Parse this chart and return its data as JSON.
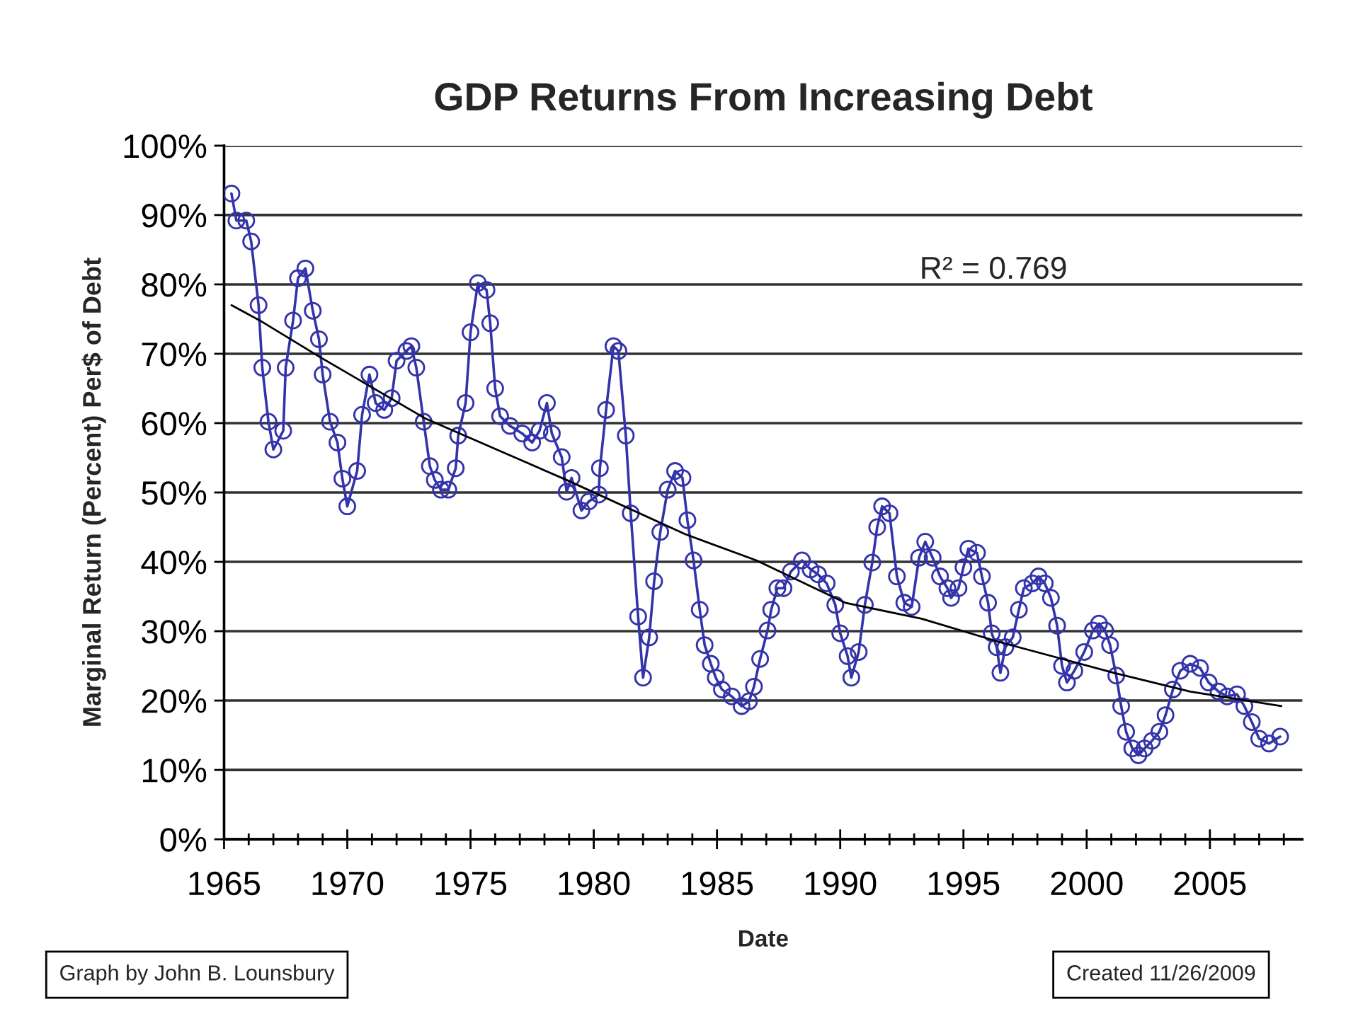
{
  "chart_data": {
    "type": "line",
    "title": "GDP Returns From Increasing Debt",
    "xlabel": "Date",
    "ylabel": "Marginal Return (Percent) Per$ of Debt",
    "annotations": [
      "R² = 0.769",
      "Graph by John B. Lounsbury",
      "Created 11/26/2009"
    ],
    "xlim": [
      1965,
      2008.75
    ],
    "ylim": [
      0,
      100
    ],
    "xticks": [
      1965,
      {
        "value": 1966,
        "label": null
      },
      {
        "value": 1967,
        "label": null
      },
      {
        "value": 1968,
        "label": null
      },
      {
        "value": 1969,
        "label": null
      },
      1970,
      {
        "value": 1971,
        "label": null
      },
      {
        "value": 1972,
        "label": null
      },
      {
        "value": 1973,
        "label": null
      },
      {
        "value": 1974,
        "label": null
      },
      1975,
      {
        "value": 1976,
        "label": null
      },
      {
        "value": 1977,
        "label": null
      },
      {
        "value": 1978,
        "label": null
      },
      {
        "value": 1979,
        "label": null
      },
      1980,
      {
        "value": 1981,
        "label": null
      },
      {
        "value": 1982,
        "label": null
      },
      {
        "value": 1983,
        "label": null
      },
      {
        "value": 1984,
        "label": null
      },
      1985,
      {
        "value": 1986,
        "label": null
      },
      {
        "value": 1987,
        "label": null
      },
      {
        "value": 1988,
        "label": null
      },
      {
        "value": 1989,
        "label": null
      },
      1990,
      {
        "value": 1991,
        "label": null
      },
      {
        "value": 1992,
        "label": null
      },
      {
        "value": 1993,
        "label": null
      },
      {
        "value": 1994,
        "label": null
      },
      1995,
      {
        "value": 1996,
        "label": null
      },
      {
        "value": 1997,
        "label": null
      },
      {
        "value": 1998,
        "label": null
      },
      {
        "value": 1999,
        "label": null
      },
      2000,
      {
        "value": 2001,
        "label": null
      },
      {
        "value": 2002,
        "label": null
      },
      {
        "value": 2003,
        "label": null
      },
      {
        "value": 2004,
        "label": null
      },
      2005,
      {
        "value": 2006,
        "label": null
      },
      {
        "value": 2007,
        "label": null
      },
      {
        "value": 2008,
        "label": null
      }
    ],
    "yticks": [
      {
        "value": 0,
        "label": "0%"
      },
      {
        "value": 10,
        "label": "10%"
      },
      {
        "value": 20,
        "label": "20%"
      },
      {
        "value": 30,
        "label": "30%"
      },
      {
        "value": 40,
        "label": "40%"
      },
      {
        "value": 50,
        "label": "50%"
      },
      {
        "value": 60,
        "label": "60%"
      },
      {
        "value": 70,
        "label": "70%"
      },
      {
        "value": 80,
        "label": "80%"
      },
      {
        "value": 90,
        "label": "90%"
      },
      {
        "value": 100,
        "label": "100%"
      }
    ],
    "grid": "y",
    "legend": false,
    "series": [
      {
        "color": "#3333aa",
        "marker": "circle",
        "line_style": "solid",
        "x": [
          1965.3,
          1965.5,
          1965.9,
          1966.1,
          1966.4,
          1966.55,
          1966.8,
          1967.0,
          1967.4,
          1967.5,
          1967.8,
          1968.0,
          1968.3,
          1968.6,
          1968.85,
          1969.0,
          1969.3,
          1969.6,
          1969.8,
          1970.0,
          1970.4,
          1970.6,
          1970.9,
          1971.15,
          1971.5,
          1971.8,
          1972.0,
          1972.4,
          1972.6,
          1972.8,
          1973.1,
          1973.35,
          1973.55,
          1973.8,
          1974.1,
          1974.4,
          1974.5,
          1974.8,
          1975.0,
          1975.3,
          1975.65,
          1975.8,
          1976.0,
          1976.2,
          1976.6,
          1977.1,
          1977.5,
          1977.8,
          1978.1,
          1978.3,
          1978.7,
          1978.9,
          1979.1,
          1979.5,
          1979.8,
          1980.2,
          1980.25,
          1980.5,
          1980.8,
          1981.0,
          1981.3,
          1981.5,
          1981.8,
          1982.0,
          1982.25,
          1982.45,
          1982.7,
          1983.0,
          1983.3,
          1983.6,
          1983.8,
          1984.05,
          1984.3,
          1984.5,
          1984.75,
          1984.95,
          1985.2,
          1985.6,
          1986.0,
          1986.3,
          1986.5,
          1986.75,
          1987.05,
          1987.2,
          1987.45,
          1987.7,
          1988.0,
          1988.45,
          1988.8,
          1989.1,
          1989.45,
          1989.8,
          1990.0,
          1990.3,
          1990.45,
          1990.75,
          1991.0,
          1991.3,
          1991.5,
          1991.7,
          1992.0,
          1992.3,
          1992.6,
          1992.9,
          1993.2,
          1993.45,
          1993.75,
          1994.05,
          1994.35,
          1994.5,
          1994.8,
          1995.0,
          1995.2,
          1995.55,
          1995.75,
          1996.0,
          1996.15,
          1996.35,
          1996.5,
          1996.7,
          1997.0,
          1997.25,
          1997.45,
          1997.8,
          1998.05,
          1998.3,
          1998.55,
          1998.8,
          1999.0,
          1999.2,
          1999.5,
          1999.9,
          2000.25,
          2000.5,
          2000.75,
          2000.95,
          2001.2,
          2001.4,
          2001.6,
          2001.85,
          2002.1,
          2002.35,
          2002.65,
          2002.95,
          2003.2,
          2003.5,
          2003.8,
          2004.2,
          2004.6,
          2004.95,
          2005.35,
          2005.7,
          2006.1,
          2006.4,
          2006.7,
          2007.0,
          2007.4,
          2007.85
        ],
        "values": [
          93.1,
          89.2,
          89.2,
          86.2,
          77.0,
          68.0,
          60.2,
          56.2,
          58.9,
          68.0,
          74.8,
          80.9,
          82.3,
          76.2,
          72.1,
          67.0,
          60.2,
          57.2,
          52.0,
          48.0,
          53.1,
          61.2,
          67.0,
          62.9,
          61.9,
          63.6,
          69.0,
          70.4,
          71.1,
          68.0,
          60.2,
          53.8,
          51.8,
          50.4,
          50.4,
          53.5,
          58.2,
          62.9,
          73.1,
          80.2,
          79.2,
          74.4,
          65.0,
          61.0,
          59.6,
          58.5,
          57.2,
          58.9,
          62.9,
          58.5,
          55.1,
          50.1,
          52.1,
          47.4,
          48.7,
          49.7,
          53.5,
          61.9,
          71.1,
          70.4,
          58.2,
          47.0,
          32.1,
          23.3,
          29.1,
          37.2,
          44.3,
          50.4,
          53.1,
          52.1,
          46.0,
          40.2,
          33.1,
          28.0,
          25.3,
          23.3,
          21.6,
          20.6,
          19.2,
          19.9,
          22.0,
          26.0,
          30.1,
          33.1,
          36.2,
          36.2,
          38.6,
          40.2,
          38.9,
          38.2,
          36.9,
          33.8,
          29.7,
          26.4,
          23.3,
          27.0,
          33.8,
          39.9,
          45.0,
          48.0,
          47.0,
          37.9,
          34.1,
          33.5,
          40.6,
          42.9,
          40.6,
          37.9,
          36.2,
          34.8,
          36.2,
          39.2,
          41.9,
          41.3,
          37.9,
          34.1,
          29.7,
          27.7,
          24.0,
          27.7,
          29.1,
          33.1,
          36.2,
          36.9,
          37.9,
          36.9,
          34.8,
          30.8,
          25.0,
          22.6,
          24.3,
          27.0,
          30.1,
          31.1,
          30.1,
          28.0,
          23.6,
          19.2,
          15.5,
          13.1,
          12.1,
          13.1,
          14.2,
          15.5,
          17.9,
          21.6,
          24.3,
          25.3,
          24.7,
          22.6,
          21.3,
          20.6,
          20.9,
          19.2,
          16.9,
          14.5,
          13.8,
          14.8
        ]
      },
      {
        "color": "#000000",
        "marker": "none",
        "line_style": "solid",
        "x": [
          1965.3,
          1966.45,
          1968.95,
          1973.2,
          1978.9,
          1983.7,
          1986.6,
          1990.2,
          1993.3,
          1996.5,
          2001.1,
          2004.2,
          2007.9
        ],
        "values": [
          77.0,
          74.8,
          69.4,
          60.6,
          51.8,
          44.0,
          40.2,
          34.1,
          31.8,
          28.4,
          24.0,
          21.3,
          19.2
        ]
      }
    ]
  }
}
